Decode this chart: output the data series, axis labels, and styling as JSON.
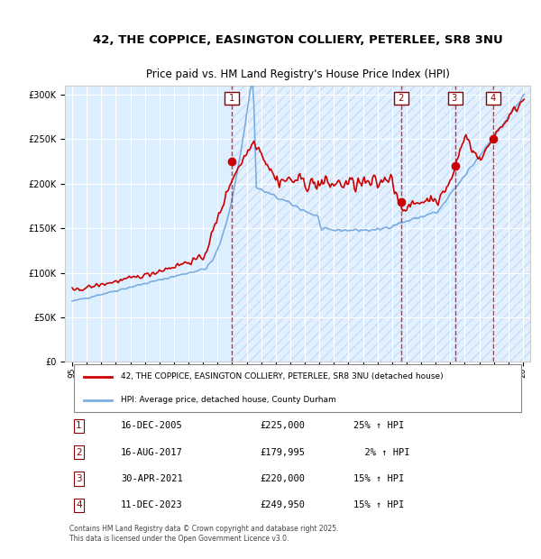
{
  "title_line1": "42, THE COPPICE, EASINGTON COLLIERY, PETERLEE, SR8 3NU",
  "title_line2": "Price paid vs. HM Land Registry's House Price Index (HPI)",
  "legend_label1": "42, THE COPPICE, EASINGTON COLLIERY, PETERLEE, SR8 3NU (detached house)",
  "legend_label2": "HPI: Average price, detached house, County Durham",
  "footer": "Contains HM Land Registry data © Crown copyright and database right 2025.\nThis data is licensed under the Open Government Licence v3.0.",
  "transactions": [
    {
      "num": 1,
      "date": "16-DEC-2005",
      "price": 225000,
      "pct": "25%",
      "dir": "↑",
      "year_x": 2005.96
    },
    {
      "num": 2,
      "date": "16-AUG-2017",
      "price": 179995,
      "pct": "2%",
      "dir": "↑",
      "year_x": 2017.62
    },
    {
      "num": 3,
      "date": "30-APR-2021",
      "price": 220000,
      "pct": "15%",
      "dir": "↑",
      "year_x": 2021.33
    },
    {
      "num": 4,
      "date": "11-DEC-2023",
      "price": 249950,
      "pct": "15%",
      "dir": "↑",
      "year_x": 2023.94
    }
  ],
  "hpi_color": "#7aade0",
  "price_color": "#cc0000",
  "dot_color": "#cc0000",
  "bg_color": "#ddeeff",
  "hatch_color": "#b0c8e8",
  "transaction_line_color": "#cc0000",
  "ylim": [
    0,
    310000
  ],
  "xlim": [
    1994.5,
    2026.5
  ],
  "yticks": [
    0,
    50000,
    100000,
    150000,
    200000,
    250000,
    300000
  ],
  "xticks": [
    1995,
    1996,
    1997,
    1998,
    1999,
    2000,
    2001,
    2002,
    2003,
    2004,
    2005,
    2006,
    2007,
    2008,
    2009,
    2010,
    2011,
    2012,
    2013,
    2014,
    2015,
    2016,
    2017,
    2018,
    2019,
    2020,
    2021,
    2022,
    2023,
    2024,
    2025,
    2026
  ]
}
